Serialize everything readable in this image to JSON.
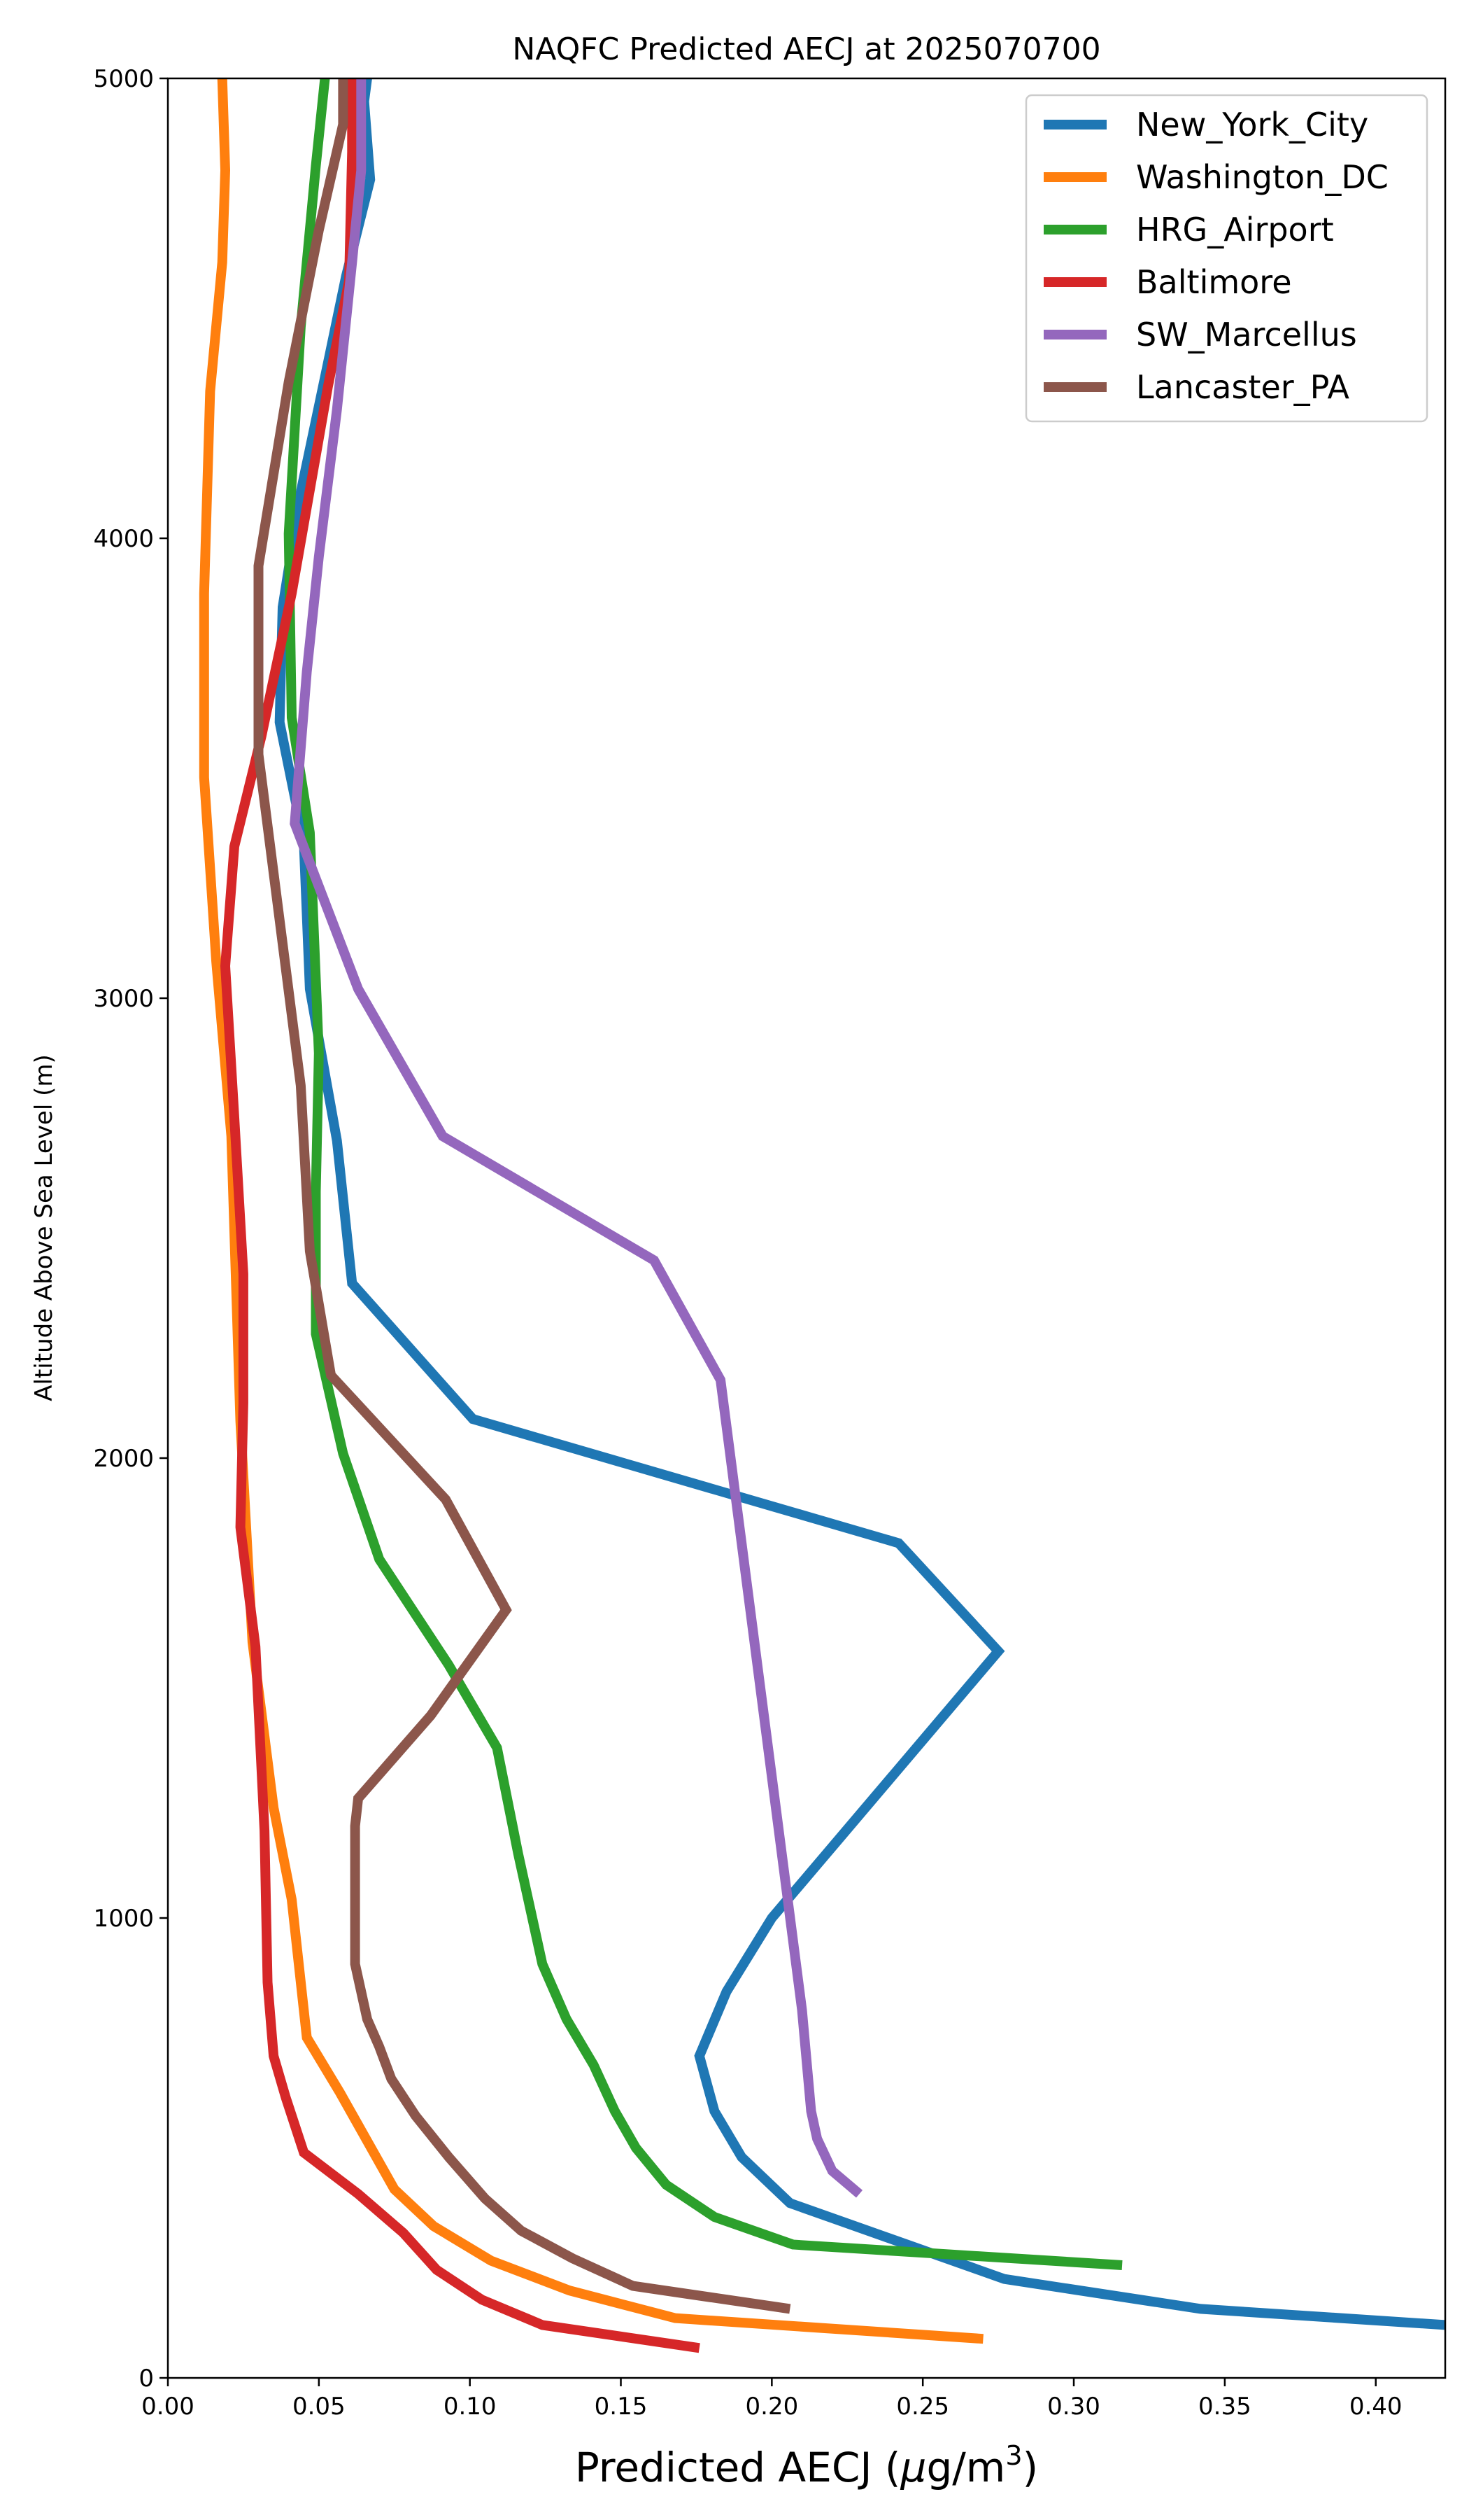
{
  "chart_data": {
    "type": "line",
    "title": "NAQFC Predicted AECJ at 2025070700",
    "xlabel_main": "Predicted AECJ (",
    "xlabel_mu": "μ",
    "xlabel_unit": "g/m",
    "xlabel_sup": "3",
    "xlabel_close": ")",
    "ylabel": "Altitude Above Sea Level (m)",
    "xlim": [
      0,
      0.423
    ],
    "ylim": [
      0,
      5000
    ],
    "xticks": [
      0.0,
      0.05,
      0.1,
      0.15,
      0.2,
      0.25,
      0.3,
      0.35,
      0.4
    ],
    "xtick_labels": [
      "0.00",
      "0.05",
      "0.10",
      "0.15",
      "0.20",
      "0.25",
      "0.30",
      "0.35",
      "0.40"
    ],
    "yticks": [
      0,
      1000,
      2000,
      3000,
      4000,
      5000
    ],
    "ytick_labels": [
      "0",
      "1000",
      "2000",
      "3000",
      "4000",
      "5000"
    ],
    "grid": false,
    "legend_position": "top-right",
    "series": [
      {
        "name": "New_York_City",
        "color": "#1f77b4",
        "x": [
          0.423,
          0.342,
          0.277,
          0.206,
          0.19,
          0.181,
          0.176,
          0.185,
          0.2,
          0.222,
          0.275,
          0.242,
          0.101,
          0.061,
          0.056,
          0.047,
          0.045,
          0.037,
          0.038,
          0.044,
          0.052,
          0.059,
          0.067,
          0.065,
          0.066
        ],
        "y": [
          115,
          150,
          215,
          380,
          480,
          580,
          700,
          840,
          1000,
          1170,
          1580,
          1815,
          2085,
          2380,
          2690,
          3020,
          3340,
          3600,
          3850,
          4100,
          4350,
          4570,
          4780,
          4950,
          5000
        ]
      },
      {
        "name": "Washington_DC",
        "color": "#ff7f0e",
        "x": [
          0.27,
          0.168,
          0.133,
          0.107,
          0.088,
          0.075,
          0.057,
          0.046,
          0.041,
          0.035,
          0.028,
          0.024,
          0.021,
          0.016,
          0.012,
          0.012,
          0.014,
          0.018,
          0.019,
          0.018
        ],
        "y": [
          85,
          130,
          190,
          255,
          330,
          410,
          620,
          740,
          1040,
          1240,
          1600,
          2080,
          2700,
          3080,
          3480,
          3880,
          4320,
          4600,
          4800,
          5000
        ]
      },
      {
        "name": "HRG_Airport",
        "color": "#2ca02c",
        "x": [
          0.316,
          0.207,
          0.181,
          0.165,
          0.155,
          0.148,
          0.141,
          0.132,
          0.124,
          0.116,
          0.109,
          0.093,
          0.07,
          0.058,
          0.049,
          0.049,
          0.05,
          0.047,
          0.041,
          0.04,
          0.044,
          0.049,
          0.052
        ],
        "y": [
          245,
          290,
          350,
          420,
          500,
          580,
          680,
          780,
          900,
          1140,
          1370,
          1550,
          1780,
          2010,
          2270,
          2580,
          2880,
          3360,
          3610,
          4010,
          4460,
          4810,
          5000
        ]
      },
      {
        "name": "Baltimore",
        "color": "#d62728",
        "x": [
          0.176,
          0.124,
          0.104,
          0.089,
          0.078,
          0.063,
          0.045,
          0.039,
          0.035,
          0.033,
          0.032,
          0.029,
          0.024,
          0.025,
          0.025,
          0.022,
          0.019,
          0.022,
          0.031,
          0.041,
          0.053,
          0.06,
          0.061,
          0.061
        ],
        "y": [
          65,
          115,
          170,
          235,
          315,
          400,
          490,
          610,
          700,
          860,
          1190,
          1590,
          1850,
          2120,
          2400,
          2740,
          3070,
          3330,
          3570,
          3880,
          4330,
          4560,
          4840,
          5000
        ]
      },
      {
        "name": "SW_Marcellus",
        "color": "#9467bd",
        "x": [
          0.229,
          0.22,
          0.215,
          0.213,
          0.21,
          0.183,
          0.161,
          0.091,
          0.063,
          0.042,
          0.046,
          0.05,
          0.056,
          0.061,
          0.064,
          0.064
        ],
        "y": [
          400,
          450,
          520,
          580,
          800,
          2170,
          2430,
          2700,
          3020,
          3380,
          3710,
          3960,
          4280,
          4600,
          4800,
          5000
        ]
      },
      {
        "name": "Lancaster_PA",
        "color": "#8c564b",
        "x": [
          0.206,
          0.154,
          0.134,
          0.117,
          0.105,
          0.093,
          0.082,
          0.074,
          0.07,
          0.066,
          0.062,
          0.062,
          0.063,
          0.087,
          0.112,
          0.092,
          0.054,
          0.047,
          0.044,
          0.03,
          0.03,
          0.04,
          0.05,
          0.058,
          0.058
        ],
        "y": [
          150,
          200,
          260,
          320,
          390,
          480,
          570,
          650,
          720,
          780,
          900,
          1200,
          1260,
          1440,
          1670,
          1910,
          2180,
          2450,
          2810,
          3530,
          3940,
          4340,
          4670,
          4900,
          5000
        ]
      }
    ]
  }
}
